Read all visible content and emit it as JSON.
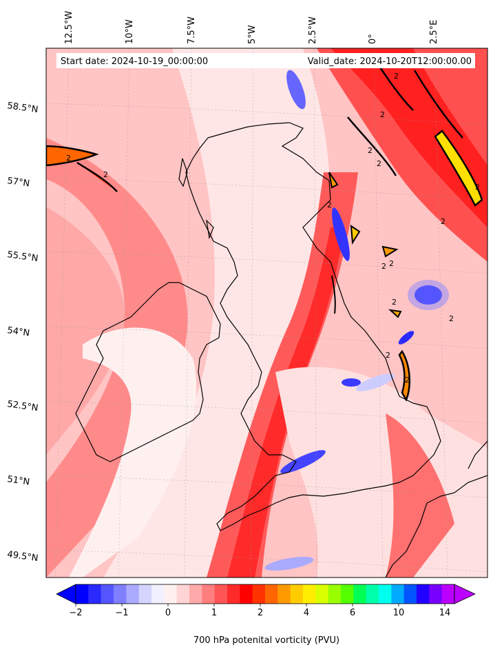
{
  "header": {
    "start_date": "Start date: 2024-10-19_00:00:00",
    "valid_date": "Valid_date: 2024-10-20T12:00:00.00"
  },
  "longitude_labels": [
    "12.5°W",
    "10°W",
    "7.5°W",
    "5°W",
    "2.5°W",
    "0°",
    "2.5°E"
  ],
  "latitude_labels": [
    "58.5°N",
    "57°N",
    "55.5°N",
    "54°N",
    "52.5°N",
    "51°N",
    "49.5°N"
  ],
  "colorbar": {
    "ticks": [
      "−2",
      "−1",
      "0",
      "1",
      "2",
      "4",
      "6",
      "10",
      "14"
    ],
    "label": "700 hPa potenital vorticity (PVU)",
    "colors": [
      "#0000ff",
      "#2a2aff",
      "#5555ff",
      "#7f7fff",
      "#aaaaff",
      "#d4d4ff",
      "#f0f0ff",
      "#fff0f0",
      "#ffd4d4",
      "#ffaaaa",
      "#ff7f7f",
      "#ff5555",
      "#ff2a2a",
      "#ff0000",
      "#ff3300",
      "#ff6600",
      "#ff9900",
      "#ffcc00",
      "#ffee00",
      "#d9ff00",
      "#99ff00",
      "#55ff00",
      "#00ff55",
      "#00ffaa",
      "#00ffee",
      "#00aaff",
      "#0055ff",
      "#2200ff",
      "#7700ff",
      "#bb00ff"
    ]
  },
  "contour_label": "2"
}
